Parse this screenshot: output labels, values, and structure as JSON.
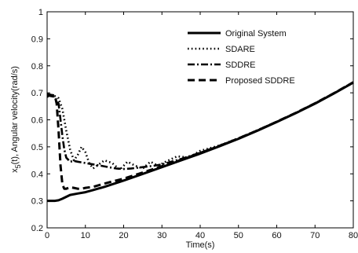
{
  "chart_data": {
    "type": "line",
    "title": "",
    "xlabel": "Time(s)",
    "ylabel_main": "x",
    "ylabel_sub": "5",
    "ylabel_rest": "(t), Angular velocity(rad/s)",
    "xlim": [
      0,
      80
    ],
    "ylim": [
      0.2,
      1.0
    ],
    "xticks": [
      0,
      10,
      20,
      30,
      40,
      50,
      60,
      70,
      80
    ],
    "yticks": [
      0.2,
      0.3,
      0.4,
      0.5,
      0.6,
      0.7,
      0.8,
      0.9,
      1.0
    ],
    "xtick_labels": [
      "0",
      "10",
      "20",
      "30",
      "40",
      "50",
      "60",
      "70",
      "80"
    ],
    "ytick_labels": [
      "0.2",
      "0.3",
      "0.4",
      "0.5",
      "0.6",
      "0.7",
      "0.8",
      "0.9",
      "1"
    ],
    "grid": false,
    "legend_position": "top-right",
    "series": [
      {
        "name": "Original System",
        "style": "solid",
        "x": [
          0,
          2,
          3,
          4,
          5,
          6,
          8,
          10,
          12,
          15,
          20,
          25,
          30,
          35,
          40,
          45,
          50,
          55,
          60,
          65,
          70,
          75,
          80
        ],
        "y": [
          0.3,
          0.3,
          0.302,
          0.308,
          0.315,
          0.322,
          0.327,
          0.332,
          0.34,
          0.352,
          0.375,
          0.4,
          0.425,
          0.45,
          0.475,
          0.502,
          0.53,
          0.56,
          0.592,
          0.625,
          0.66,
          0.698,
          0.738
        ]
      },
      {
        "name": "SDARE",
        "style": "dotted",
        "x": [
          0,
          1,
          2,
          3,
          4,
          4.5,
          5,
          6,
          7,
          8,
          9,
          10,
          11,
          12,
          13,
          15,
          17,
          19,
          21,
          23,
          25,
          27,
          29,
          31,
          34,
          37,
          40,
          45,
          50,
          55,
          60,
          65,
          70,
          75,
          80
        ],
        "y": [
          0.685,
          0.69,
          0.688,
          0.68,
          0.64,
          0.6,
          0.56,
          0.49,
          0.45,
          0.47,
          0.5,
          0.48,
          0.44,
          0.42,
          0.43,
          0.45,
          0.44,
          0.415,
          0.445,
          0.43,
          0.42,
          0.445,
          0.43,
          0.445,
          0.465,
          0.46,
          0.485,
          0.505,
          0.532,
          0.562,
          0.593,
          0.626,
          0.661,
          0.699,
          0.739
        ]
      },
      {
        "name": "SDDRE",
        "style": "dashdot",
        "x": [
          0,
          1,
          2,
          3,
          3.5,
          4,
          4.5,
          5,
          6,
          7,
          8,
          10,
          12,
          14,
          16,
          18,
          20,
          22,
          25,
          28,
          30,
          35,
          40,
          45,
          50,
          55,
          60,
          65,
          70,
          75,
          80
        ],
        "y": [
          0.69,
          0.688,
          0.685,
          0.66,
          0.6,
          0.54,
          0.49,
          0.46,
          0.445,
          0.448,
          0.445,
          0.44,
          0.435,
          0.43,
          0.425,
          0.42,
          0.418,
          0.42,
          0.425,
          0.43,
          0.435,
          0.455,
          0.478,
          0.504,
          0.531,
          0.561,
          0.593,
          0.626,
          0.661,
          0.699,
          0.739
        ]
      },
      {
        "name": "Proposed SDDRE",
        "style": "dashed",
        "x": [
          0,
          1,
          2,
          2.5,
          3,
          3.5,
          4,
          4.5,
          5,
          6,
          7,
          8,
          9,
          10,
          12,
          14,
          16,
          18,
          20,
          25,
          30,
          35,
          40,
          45,
          50,
          55,
          60,
          65,
          70,
          75,
          80
        ],
        "y": [
          0.695,
          0.692,
          0.69,
          0.66,
          0.56,
          0.43,
          0.36,
          0.345,
          0.345,
          0.35,
          0.348,
          0.345,
          0.345,
          0.348,
          0.352,
          0.36,
          0.368,
          0.375,
          0.382,
          0.405,
          0.428,
          0.452,
          0.477,
          0.503,
          0.531,
          0.561,
          0.593,
          0.626,
          0.661,
          0.699,
          0.739
        ]
      }
    ]
  }
}
